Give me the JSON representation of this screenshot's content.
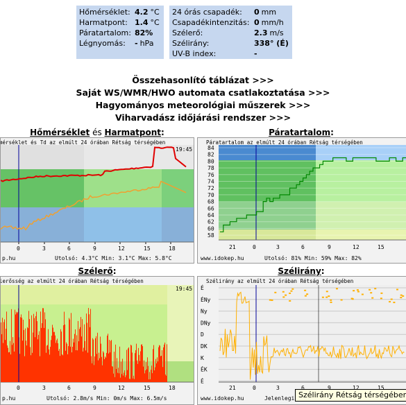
{
  "current": {
    "left": [
      {
        "label": "Hőmérséklet:",
        "value": "4.2",
        "unit": "°C"
      },
      {
        "label": "Harmatpont:",
        "value": "1.4",
        "unit": "°C"
      },
      {
        "label": "Páratartalom:",
        "value": "82%",
        "unit": ""
      },
      {
        "label": "Légnyomás:",
        "value": "-",
        "unit": "hPa"
      }
    ],
    "right": [
      {
        "label": "24 órás csapadék:",
        "value": "0",
        "unit": "mm"
      },
      {
        "label": "Csapadékintenzitás:",
        "value": "0",
        "unit": "mm/h"
      },
      {
        "label": "Szélerő:",
        "value": "2.3",
        "unit": "m/s"
      },
      {
        "label": "Szélirány:",
        "value": "338° (É)",
        "unit": ""
      },
      {
        "label": "UV-B index:",
        "value": "-",
        "unit": ""
      }
    ]
  },
  "links": [
    "Összehasonlító táblázat >>>",
    "Saját WS/WMR/HWO automata csatlakoztatása >>>",
    "Hagyományos meteorológiai műszerek >>>",
    "Viharvadász időjárási rendszer >>>"
  ],
  "panels": {
    "temp": {
      "title_a": "Hőmérséklet",
      "title_mid": " és ",
      "title_b": "Harmatpont",
      "title_end": ":",
      "subtitle": "mérséklet és Td az elmúlt 24 órában Rétság térségében",
      "time": "19:45",
      "yticks": [],
      "xticks": [
        "0",
        "3",
        "6",
        "9",
        "12",
        "15",
        "18"
      ],
      "footer_left": "p.hu",
      "footer_right": "Utolsó: 4.3°C  Min: 3.1°C  Max: 5.8°C"
    },
    "hum": {
      "title": "Páratartalom",
      "title_end": ":",
      "subtitle": "Páratartalom az elmúlt 24 órában Rétság térségében",
      "yticks": [
        "84",
        "82",
        "80",
        "78",
        "76",
        "74",
        "72",
        "70",
        "68",
        "66",
        "64",
        "62",
        "60",
        "58"
      ],
      "xticks": [
        "21",
        "0",
        "3",
        "6",
        "9",
        "12",
        "15"
      ],
      "footer_left": "www.idokep.hu",
      "footer_right": "Utolsó: 81%  Min: 59%  Max: 82%"
    },
    "wind": {
      "title": "Szélerő",
      "title_end": ":",
      "subtitle": "lerősség az elmúlt 24 órában Rétság térségében",
      "time": "19:45",
      "xticks": [
        "0",
        "3",
        "6",
        "9",
        "12",
        "15",
        "18"
      ],
      "footer_left": "p.hu",
      "footer_right": "Utolsó: 2.8m/s  Min: 0m/s  Max: 6.5m/s"
    },
    "dir": {
      "title": "Szélirány",
      "title_end": ":",
      "subtitle": "Szélirány az elmúlt 24 órában Rétság térségében",
      "yticks": [
        "É",
        "ÉNy",
        "Ny",
        "DNy",
        "D",
        "DK",
        "K",
        "ÉK",
        "É"
      ],
      "xticks": [
        "21",
        "0",
        "3",
        "6",
        "9",
        "12",
        "15"
      ],
      "footer_left": "www.idokep.hu",
      "footer_right": "Jelenlegi"
    }
  },
  "tooltip": "Szélirány Rétság térségében",
  "colors": {
    "temp": "#e00000",
    "dew": "#f0a030",
    "hum": "#008800",
    "wind": "#ff3300",
    "dir": "#ffb000",
    "cursor": "#000099"
  }
}
